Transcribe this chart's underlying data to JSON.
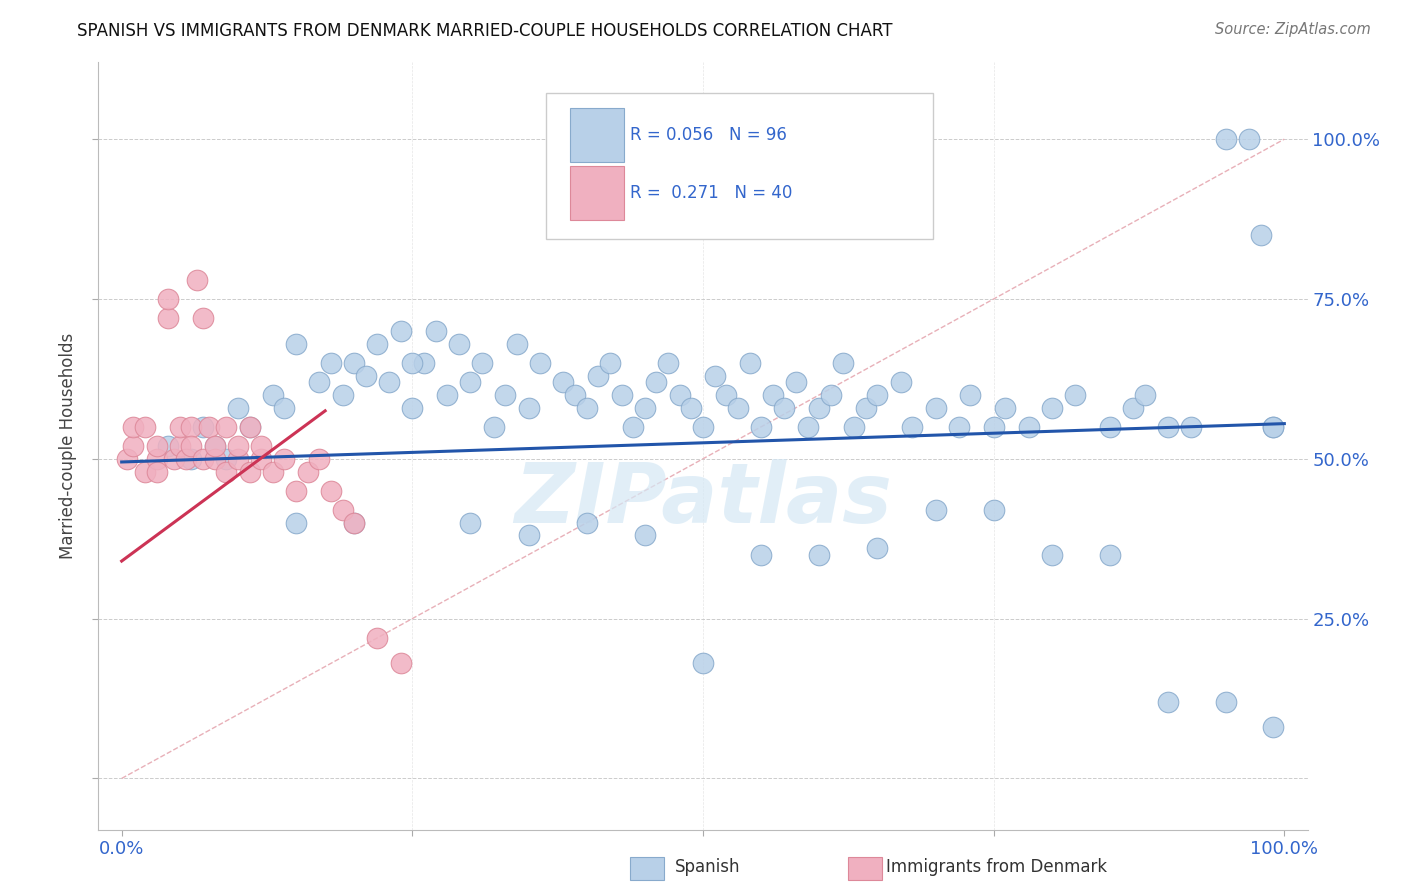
{
  "title": "SPANISH VS IMMIGRANTS FROM DENMARK MARRIED-COUPLE HOUSEHOLDS CORRELATION CHART",
  "source": "Source: ZipAtlas.com",
  "ylabel": "Married-couple Households",
  "xlim": [
    -0.02,
    1.02
  ],
  "ylim": [
    -0.08,
    1.12
  ],
  "xtick_positions": [
    0.0,
    0.25,
    0.5,
    0.75,
    1.0
  ],
  "xtick_labels": [
    "0.0%",
    "",
    "",
    "",
    "100.0%"
  ],
  "ytick_right_positions": [
    0.0,
    0.25,
    0.5,
    0.75,
    1.0
  ],
  "ytick_right_labels": [
    "",
    "25.0%",
    "50.0%",
    "75.0%",
    "100.0%"
  ],
  "blue_color": "#b8d0e8",
  "pink_color": "#f0b0c0",
  "blue_edge": "#88aacc",
  "pink_edge": "#dd8899",
  "trend_blue": "#2255aa",
  "trend_pink": "#cc3355",
  "diag_color": "#e8b0b8",
  "grid_color": "#cccccc",
  "watermark_color": "#d5e8f5",
  "background": "#ffffff",
  "blue_trend_x0": 0.0,
  "blue_trend_x1": 1.0,
  "blue_trend_y0": 0.495,
  "blue_trend_y1": 0.555,
  "pink_trend_x0": 0.0,
  "pink_trend_x1": 0.175,
  "pink_trend_y0": 0.34,
  "pink_trend_y1": 0.575,
  "blue_x": [
    0.04,
    0.06,
    0.07,
    0.08,
    0.09,
    0.1,
    0.11,
    0.13,
    0.14,
    0.15,
    0.17,
    0.18,
    0.19,
    0.2,
    0.21,
    0.22,
    0.23,
    0.24,
    0.25,
    0.26,
    0.27,
    0.28,
    0.29,
    0.3,
    0.31,
    0.32,
    0.33,
    0.34,
    0.35,
    0.36,
    0.38,
    0.39,
    0.4,
    0.41,
    0.42,
    0.43,
    0.44,
    0.45,
    0.46,
    0.47,
    0.48,
    0.49,
    0.5,
    0.51,
    0.52,
    0.53,
    0.54,
    0.55,
    0.56,
    0.57,
    0.58,
    0.59,
    0.6,
    0.61,
    0.62,
    0.63,
    0.64,
    0.65,
    0.67,
    0.68,
    0.7,
    0.72,
    0.73,
    0.75,
    0.76,
    0.78,
    0.8,
    0.82,
    0.85,
    0.87,
    0.88,
    0.9,
    0.92,
    0.95,
    0.97,
    0.98,
    0.99,
    0.15,
    0.2,
    0.25,
    0.3,
    0.35,
    0.4,
    0.45,
    0.5,
    0.55,
    0.6,
    0.65,
    0.7,
    0.75,
    0.8,
    0.85,
    0.9,
    0.95,
    0.99,
    0.99
  ],
  "blue_y": [
    0.52,
    0.5,
    0.55,
    0.52,
    0.5,
    0.58,
    0.55,
    0.6,
    0.58,
    0.68,
    0.62,
    0.65,
    0.6,
    0.65,
    0.63,
    0.68,
    0.62,
    0.7,
    0.58,
    0.65,
    0.7,
    0.6,
    0.68,
    0.62,
    0.65,
    0.55,
    0.6,
    0.68,
    0.58,
    0.65,
    0.62,
    0.6,
    0.58,
    0.63,
    0.65,
    0.6,
    0.55,
    0.58,
    0.62,
    0.65,
    0.6,
    0.58,
    0.55,
    0.63,
    0.6,
    0.58,
    0.65,
    0.55,
    0.6,
    0.58,
    0.62,
    0.55,
    0.58,
    0.6,
    0.65,
    0.55,
    0.58,
    0.6,
    0.62,
    0.55,
    0.58,
    0.55,
    0.6,
    0.55,
    0.58,
    0.55,
    0.58,
    0.6,
    0.55,
    0.58,
    0.6,
    0.55,
    0.55,
    1.0,
    1.0,
    0.85,
    0.55,
    0.4,
    0.4,
    0.65,
    0.4,
    0.38,
    0.4,
    0.38,
    0.18,
    0.35,
    0.35,
    0.36,
    0.42,
    0.42,
    0.35,
    0.35,
    0.12,
    0.12,
    0.08,
    0.55
  ],
  "pink_x": [
    0.005,
    0.01,
    0.01,
    0.02,
    0.02,
    0.03,
    0.03,
    0.03,
    0.04,
    0.04,
    0.045,
    0.05,
    0.05,
    0.055,
    0.06,
    0.06,
    0.065,
    0.07,
    0.07,
    0.075,
    0.08,
    0.08,
    0.09,
    0.09,
    0.1,
    0.1,
    0.11,
    0.11,
    0.12,
    0.12,
    0.13,
    0.14,
    0.15,
    0.16,
    0.17,
    0.18,
    0.19,
    0.2,
    0.22,
    0.24
  ],
  "pink_y": [
    0.5,
    0.52,
    0.55,
    0.48,
    0.55,
    0.5,
    0.48,
    0.52,
    0.72,
    0.75,
    0.5,
    0.52,
    0.55,
    0.5,
    0.55,
    0.52,
    0.78,
    0.5,
    0.72,
    0.55,
    0.5,
    0.52,
    0.55,
    0.48,
    0.5,
    0.52,
    0.48,
    0.55,
    0.5,
    0.52,
    0.48,
    0.5,
    0.45,
    0.48,
    0.5,
    0.45,
    0.42,
    0.4,
    0.22,
    0.18
  ]
}
